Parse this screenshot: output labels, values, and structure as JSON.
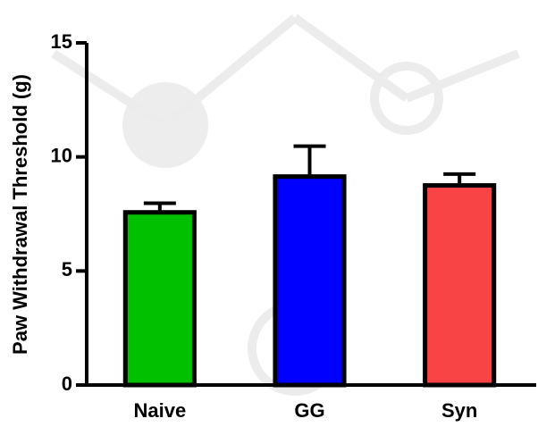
{
  "chart_data": {
    "type": "bar",
    "y_label": "Paw Withdrawal Threshold (g)",
    "categories": [
      "Naive",
      "GG",
      "Syn"
    ],
    "values": [
      7.57,
      9.14,
      8.75
    ],
    "errors": [
      0.4,
      1.33,
      0.5
    ],
    "colors": [
      "#00c000",
      "#0000ff",
      "#f84444"
    ],
    "ylim": [
      0,
      15
    ],
    "yticks": [
      0,
      5,
      10,
      15
    ]
  }
}
